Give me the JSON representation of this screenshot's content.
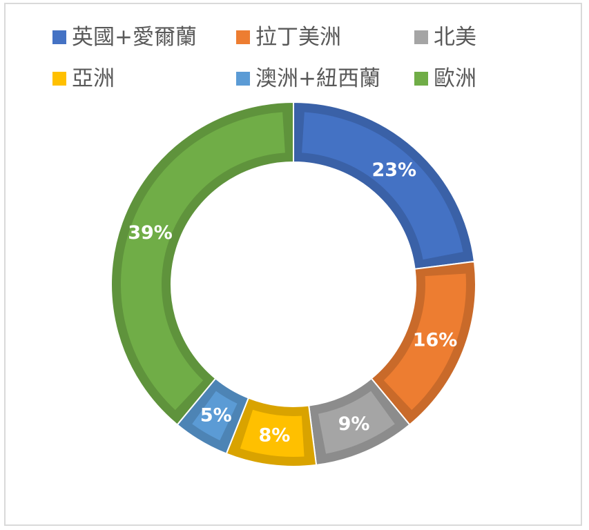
{
  "chart_data": {
    "type": "doughnut",
    "title": "",
    "legend_position": "top",
    "categories": [
      "英國+愛爾蘭",
      "拉丁美洲",
      "北美",
      "亞洲",
      "澳洲+紐西蘭",
      "歐洲"
    ],
    "values": [
      23,
      16,
      9,
      8,
      5,
      39
    ],
    "labels": [
      "23%",
      "16%",
      "9%",
      "8%",
      "5%",
      "39%"
    ],
    "colors": [
      "#4472C4",
      "#ED7D31",
      "#A5A5A5",
      "#FFC000",
      "#5B9BD5",
      "#70AD47"
    ],
    "start_angle_deg": 0,
    "direction": "clockwise"
  }
}
